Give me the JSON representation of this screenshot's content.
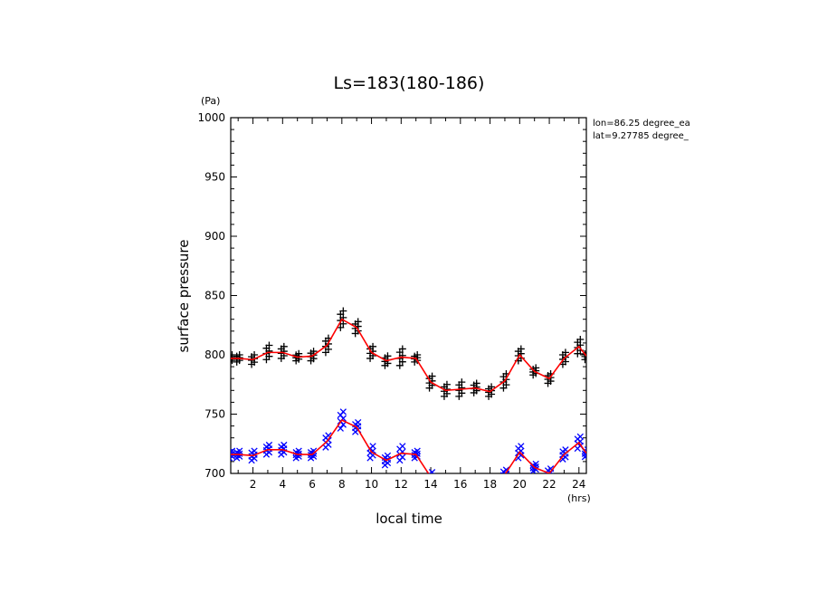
{
  "chart_data": {
    "type": "line",
    "title": "Ls=183(180-186)",
    "xlabel": "local time",
    "ylabel": "surface pressure",
    "yunit": "(Pa)",
    "xunit": "(hrs)",
    "xlim": [
      0.5,
      24.5
    ],
    "ylim": [
      700,
      1000
    ],
    "xticks": [
      2,
      4,
      6,
      8,
      10,
      12,
      14,
      16,
      18,
      20,
      22,
      24
    ],
    "xtick_labels": [
      "2",
      "4",
      "6",
      "8",
      "10",
      "12",
      "14",
      "16",
      "18",
      "20",
      "22",
      "24"
    ],
    "yticks": [
      700,
      750,
      800,
      850,
      900,
      950,
      1000
    ],
    "ytick_labels": [
      "700",
      "750",
      "800",
      "850",
      "900",
      "950",
      "1000"
    ],
    "annotations": [
      "lon=86.25 degree_ea",
      "lat=9.27785 degree_"
    ],
    "grid": false,
    "series": [
      {
        "marker": "plus",
        "color": "#000000",
        "line_color": "#ff0000",
        "x": [
          0.5,
          1,
          2,
          3,
          4,
          5,
          6,
          7,
          8,
          9,
          10,
          11,
          12,
          13,
          14,
          15,
          16,
          17,
          18,
          19,
          20,
          21,
          22,
          23,
          24,
          24.5
        ],
        "mean": [
          797,
          797,
          796,
          802,
          802,
          798,
          799,
          808,
          830,
          823,
          802,
          795,
          798,
          797,
          777,
          770,
          771,
          772,
          769,
          778,
          800,
          786,
          780,
          797,
          807,
          799
        ],
        "spread": [
          3,
          3,
          4,
          6,
          5,
          3,
          4,
          6,
          7,
          5,
          5,
          4,
          7,
          3,
          5,
          5,
          6,
          4,
          4,
          6,
          5,
          3,
          4,
          5,
          6,
          3
        ]
      },
      {
        "marker": "x",
        "color": "#0000ff",
        "line_color": "#ff0000",
        "x": [
          0.5,
          1,
          2,
          3,
          4,
          5,
          6,
          7,
          8,
          9,
          10,
          11,
          12,
          13,
          14,
          15,
          16,
          17,
          18,
          19,
          20,
          21,
          22,
          23,
          24,
          24.5
        ],
        "mean": [
          716,
          716,
          715,
          720,
          720,
          716,
          716,
          727,
          745,
          739,
          718,
          711,
          717,
          716,
          697,
          690,
          692,
          692,
          689,
          699,
          718,
          705,
          700,
          716,
          726,
          717
        ],
        "spread": [
          3,
          3,
          4,
          4,
          4,
          3,
          3,
          5,
          7,
          4,
          5,
          4,
          6,
          3,
          4,
          4,
          5,
          4,
          4,
          4,
          5,
          3,
          4,
          4,
          5,
          3
        ]
      }
    ]
  }
}
